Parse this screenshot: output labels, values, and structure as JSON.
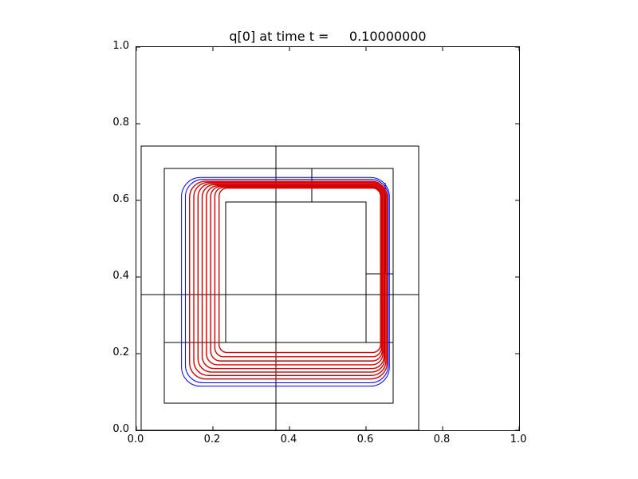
{
  "figure": {
    "background": "#ffffff",
    "frame_color": "#000000"
  },
  "chart_data": {
    "type": "line",
    "subtype": "contour-plot-with-amr-patch-outlines",
    "title": "q[0] at time t =     0.10000000",
    "xlabel": "",
    "ylabel": "",
    "xlim": [
      0.0,
      1.0
    ],
    "ylim": [
      0.0,
      1.0
    ],
    "grid": false,
    "legend": "none",
    "tick_direction": "in",
    "xticks": {
      "values": [
        0.0,
        0.2,
        0.4,
        0.6,
        0.8,
        1.0
      ],
      "labels": [
        "0.0",
        "0.2",
        "0.4",
        "0.6",
        "0.8",
        "1.0"
      ]
    },
    "yticks": {
      "values": [
        0.0,
        0.2,
        0.4,
        0.6,
        0.8,
        1.0
      ],
      "labels": [
        "0.0",
        "0.2",
        "0.4",
        "0.6",
        "0.8",
        "1.0"
      ]
    },
    "amr_patches": {
      "color": "#000000",
      "line_width": 1,
      "rects": [
        {
          "x0": 0.0125,
          "y0": 0.0,
          "x1": 0.7375,
          "y1": 0.7417
        },
        {
          "x0": 0.0729,
          "y0": 0.0708,
          "x1": 0.6708,
          "y1": 0.6833
        },
        {
          "x0": 0.2333,
          "y0": 0.2292,
          "x1": 0.6,
          "y1": 0.5958
        }
      ],
      "segments": [
        [
          0.3646,
          0.0,
          0.3646,
          0.7417
        ],
        [
          0.0125,
          0.3542,
          0.7375,
          0.3542
        ],
        [
          0.4583,
          0.5958,
          0.4583,
          0.6833
        ],
        [
          0.65,
          0.4083,
          0.65,
          0.6458
        ],
        [
          0.6,
          0.4083,
          0.6708,
          0.4083
        ],
        [
          0.0729,
          0.2292,
          0.2333,
          0.2292
        ],
        [
          0.6,
          0.2292,
          0.6708,
          0.2292
        ]
      ]
    },
    "contour_colors": {
      "low_level": "#0000ff",
      "high_level": "#d40000"
    },
    "contours": [
      {
        "color": "#0000ff",
        "left": 0.118,
        "bottom": 0.115,
        "right": 0.661,
        "top": 0.66,
        "radius": 0.05,
        "width": 1.0
      },
      {
        "color": "#0000ff",
        "left": 0.128,
        "bottom": 0.124,
        "right": 0.658,
        "top": 0.655,
        "radius": 0.046,
        "width": 1.0
      },
      {
        "color": "#d40000",
        "left": 0.139,
        "bottom": 0.134,
        "right": 0.655,
        "top": 0.65,
        "radius": 0.042,
        "width": 1.4
      },
      {
        "color": "#d40000",
        "left": 0.15,
        "bottom": 0.143,
        "right": 0.652,
        "top": 0.647,
        "radius": 0.038,
        "width": 1.4
      },
      {
        "color": "#d40000",
        "left": 0.161,
        "bottom": 0.152,
        "right": 0.649,
        "top": 0.644,
        "radius": 0.035,
        "width": 1.4
      },
      {
        "color": "#d40000",
        "left": 0.172,
        "bottom": 0.161,
        "right": 0.647,
        "top": 0.641,
        "radius": 0.032,
        "width": 1.4
      },
      {
        "color": "#d40000",
        "left": 0.183,
        "bottom": 0.171,
        "right": 0.644,
        "top": 0.638,
        "radius": 0.029,
        "width": 1.4
      },
      {
        "color": "#d40000",
        "left": 0.194,
        "bottom": 0.181,
        "right": 0.642,
        "top": 0.636,
        "radius": 0.026,
        "width": 1.4
      },
      {
        "color": "#d40000",
        "left": 0.205,
        "bottom": 0.192,
        "right": 0.64,
        "top": 0.634,
        "radius": 0.023,
        "width": 1.4
      },
      {
        "color": "#d40000",
        "left": 0.216,
        "bottom": 0.203,
        "right": 0.638,
        "top": 0.632,
        "radius": 0.021,
        "width": 1.4
      }
    ]
  }
}
